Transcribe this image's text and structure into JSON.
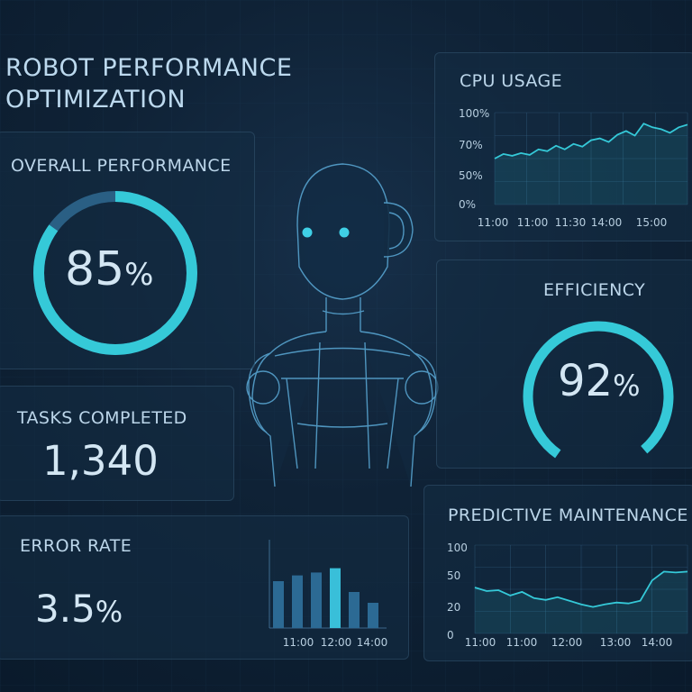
{
  "header": {
    "title_line1": "ROBOT PERFORMANCE",
    "title_line2": "OPTIMIZATION"
  },
  "overall_performance": {
    "label": "OVERALL PERFORMANCE",
    "value": "85",
    "unit": "%",
    "fraction": 0.85
  },
  "tasks_completed": {
    "label": "TASKS COMPLETED",
    "value": "1,340"
  },
  "error_rate": {
    "label": "ERROR RATE",
    "value": "3.5",
    "unit": "%"
  },
  "cpu_usage": {
    "label": "CPU USAGE"
  },
  "efficiency": {
    "label": "EFFICIENCY",
    "value": "92",
    "unit": "%",
    "fraction": 0.92
  },
  "predictive_maintenance": {
    "label": "PREDICTIVE MAINTENANCE"
  },
  "colors": {
    "accent": "#35c9d8",
    "track": "#2a5f84",
    "bar": "#2c6a94",
    "bar_highlight": "#39bfd9"
  },
  "chart_data": [
    {
      "id": "cpu_usage",
      "type": "line",
      "title": "CPU USAGE",
      "xlabel": "",
      "ylabel": "",
      "y_tick_labels": [
        "0%",
        "50%",
        "70%",
        "100%"
      ],
      "x_tick_labels": [
        "11:00",
        "11:00",
        "11:30",
        "14:00",
        "15:00"
      ],
      "ylim": [
        0,
        100
      ],
      "grid": true,
      "series": [
        {
          "values": [
            50,
            55,
            53,
            56,
            54,
            60,
            58,
            64,
            60,
            66,
            63,
            70,
            72,
            68,
            76,
            80,
            75,
            88,
            84,
            82,
            78,
            84,
            87
          ]
        }
      ]
    },
    {
      "id": "error_rate",
      "type": "bar",
      "x_tick_labels": [
        "11:00",
        "12:00",
        "14:00"
      ],
      "values": [
        0.65,
        0.73,
        0.77,
        0.83,
        0.5,
        0.35
      ],
      "highlight_index": 3,
      "ylim": [
        0,
        1
      ]
    },
    {
      "id": "predictive_maintenance",
      "type": "line",
      "title": "PREDICTIVE MAINTENANCE",
      "xlabel": "",
      "ylabel": "",
      "y_tick_labels": [
        "0",
        "20",
        "50",
        "100"
      ],
      "x_tick_labels": [
        "11:00",
        "11:00",
        "12:00",
        "13:00",
        "14:00"
      ],
      "ylim": [
        0,
        100
      ],
      "grid": true,
      "series": [
        {
          "values": [
            52,
            48,
            49,
            43,
            47,
            40,
            38,
            41,
            37,
            33,
            30,
            33,
            35,
            34,
            37,
            60,
            70,
            69,
            70
          ]
        }
      ]
    }
  ]
}
